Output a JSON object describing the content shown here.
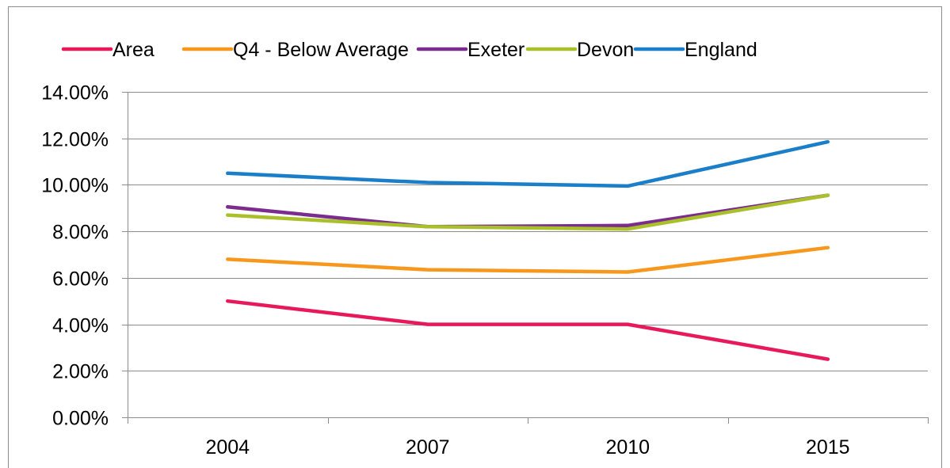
{
  "chart_data": {
    "type": "line",
    "title": "",
    "xlabel": "",
    "ylabel": "",
    "categories": [
      "2004",
      "2007",
      "2010",
      "2015"
    ],
    "ylim": [
      0,
      0.14
    ],
    "y_ticks": [
      "0.00%",
      "2.00%",
      "4.00%",
      "6.00%",
      "8.00%",
      "10.00%",
      "12.00%",
      "14.00%"
    ],
    "grid": "horizontal",
    "legend_position": "top",
    "series": [
      {
        "name": "Area",
        "color": "#E8195A",
        "values": [
          0.05,
          0.04,
          0.04,
          0.025
        ]
      },
      {
        "name": "Q4 - Below Average",
        "color": "#F7981D",
        "values": [
          0.068,
          0.0635,
          0.0625,
          0.073
        ]
      },
      {
        "name": "Exeter",
        "color": "#7B2D8E",
        "values": [
          0.0905,
          0.082,
          0.0825,
          0.0955
        ]
      },
      {
        "name": "Devon",
        "color": "#A9C02B",
        "values": [
          0.087,
          0.082,
          0.081,
          0.0955
        ]
      },
      {
        "name": "England",
        "color": "#1B7EC8",
        "values": [
          0.105,
          0.101,
          0.0995,
          0.1185
        ]
      }
    ]
  }
}
